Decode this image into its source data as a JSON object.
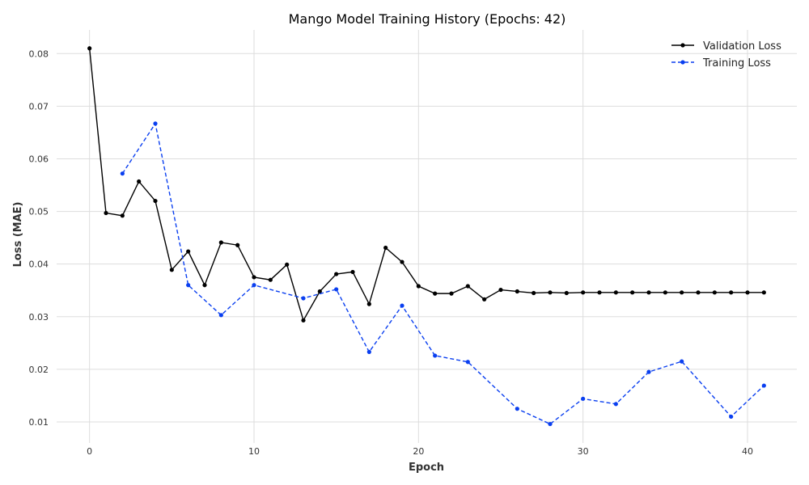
{
  "chart_data": {
    "type": "line",
    "title": "Mango Model Training History (Epochs: 42)",
    "xlabel": "Epoch",
    "ylabel": "Loss (MAE)",
    "xlim": [
      -2,
      43
    ],
    "ylim": [
      0.006,
      0.0845
    ],
    "xticks": [
      0,
      10,
      20,
      30,
      40
    ],
    "yticks": [
      0.01,
      0.02,
      0.03,
      0.04,
      0.05,
      0.06,
      0.07,
      0.08
    ],
    "grid": true,
    "legend_position": "top-right",
    "series": [
      {
        "name": "Validation Loss",
        "color": "#000000",
        "style": "solid",
        "x": [
          0,
          1,
          2,
          3,
          4,
          5,
          6,
          7,
          8,
          9,
          10,
          11,
          12,
          13,
          14,
          15,
          16,
          17,
          18,
          19,
          20,
          21,
          22,
          23,
          24,
          25,
          26,
          27,
          28,
          29,
          30,
          31,
          32,
          33,
          34,
          35,
          36,
          37,
          38,
          39,
          40,
          41
        ],
        "y": [
          0.081,
          0.0497,
          0.0492,
          0.0557,
          0.052,
          0.0389,
          0.0424,
          0.036,
          0.0441,
          0.0436,
          0.0375,
          0.037,
          0.0399,
          0.0293,
          0.0348,
          0.0381,
          0.0385,
          0.0324,
          0.0431,
          0.0404,
          0.0358,
          0.0344,
          0.0344,
          0.0358,
          0.0333,
          0.0351,
          0.0348,
          0.0345,
          0.0346,
          0.0345,
          0.0346,
          0.0346,
          0.0346,
          0.0346,
          0.0346,
          0.0346,
          0.0346,
          0.0346,
          0.0346,
          0.0346,
          0.0346,
          0.0346
        ]
      },
      {
        "name": "Training Loss",
        "color": "#0a3ff0",
        "style": "dashed",
        "x": [
          2,
          4,
          6,
          8,
          10,
          13,
          15,
          17,
          19,
          21,
          23,
          26,
          28,
          30,
          32,
          34,
          36,
          39,
          41
        ],
        "y": [
          0.0572,
          0.0667,
          0.036,
          0.0303,
          0.036,
          0.0335,
          0.0352,
          0.0233,
          0.0321,
          0.0226,
          0.0214,
          0.0125,
          0.0096,
          0.0144,
          0.0134,
          0.0195,
          0.0215,
          0.011,
          0.0169
        ]
      }
    ]
  }
}
